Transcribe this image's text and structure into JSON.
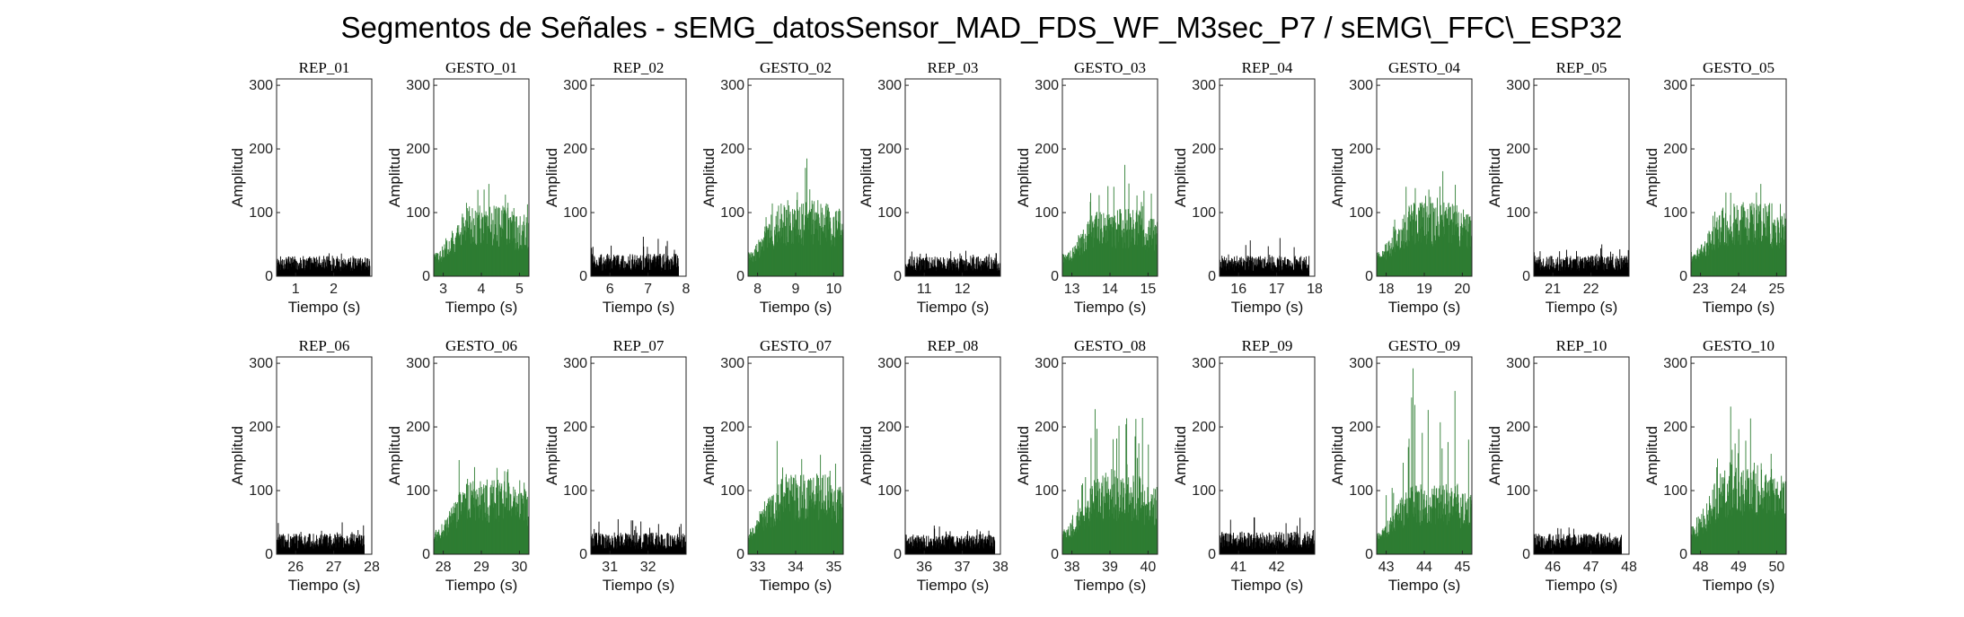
{
  "figure": {
    "title": "Segmentos de Señales - sEMG_datosSensor_MAD_FDS_WF_M3sec_P7 / sEMG\\_FFC\\_ESP32"
  },
  "colors": {
    "rep": "#000000",
    "gesto": "#2e7d32"
  },
  "chart_data": [
    {
      "type": "bar",
      "title": "REP_01",
      "kind": "rep",
      "xlabel": "Tiempo (s)",
      "ylabel": "Amplitud",
      "xlim": [
        0.5,
        3.0
      ],
      "ylim": [
        0,
        310
      ],
      "xticks": [
        1,
        2
      ],
      "yticks": [
        0,
        100,
        200,
        300
      ],
      "t_range": [
        0.5,
        2.95
      ],
      "baseline": 22,
      "max": 36
    },
    {
      "type": "bar",
      "title": "GESTO_01",
      "kind": "gesto",
      "xlabel": "Tiempo (s)",
      "ylabel": "Amplitud",
      "xlim": [
        2.75,
        5.25
      ],
      "ylim": [
        0,
        310
      ],
      "xticks": [
        3,
        4,
        5
      ],
      "yticks": [
        0,
        100,
        200,
        300
      ],
      "t_range": [
        2.75,
        5.25
      ],
      "baseline": 55,
      "max": 145
    },
    {
      "type": "bar",
      "title": "REP_02",
      "kind": "rep",
      "xlabel": "Tiempo (s)",
      "ylabel": "Amplitud",
      "xlim": [
        5.5,
        8.0
      ],
      "ylim": [
        0,
        310
      ],
      "xticks": [
        6,
        7,
        8
      ],
      "yticks": [
        0,
        100,
        200,
        300
      ],
      "t_range": [
        5.5,
        7.8
      ],
      "baseline": 25,
      "max": 62
    },
    {
      "type": "bar",
      "title": "GESTO_02",
      "kind": "gesto",
      "xlabel": "Tiempo (s)",
      "ylabel": "Amplitud",
      "xlim": [
        7.75,
        10.25
      ],
      "ylim": [
        0,
        310
      ],
      "xticks": [
        8,
        9,
        10
      ],
      "yticks": [
        0,
        100,
        200,
        300
      ],
      "t_range": [
        7.75,
        10.25
      ],
      "baseline": 60,
      "max": 185
    },
    {
      "type": "bar",
      "title": "REP_03",
      "kind": "rep",
      "xlabel": "Tiempo (s)",
      "ylabel": "Amplitud",
      "xlim": [
        10.5,
        13.0
      ],
      "ylim": [
        0,
        310
      ],
      "xticks": [
        11,
        12
      ],
      "yticks": [
        0,
        100,
        200,
        300
      ],
      "t_range": [
        10.5,
        13.0
      ],
      "baseline": 22,
      "max": 40
    },
    {
      "type": "bar",
      "title": "GESTO_03",
      "kind": "gesto",
      "xlabel": "Tiempo (s)",
      "ylabel": "Amplitud",
      "xlim": [
        12.75,
        15.25
      ],
      "ylim": [
        0,
        310
      ],
      "xticks": [
        13,
        14,
        15
      ],
      "yticks": [
        0,
        100,
        200,
        300
      ],
      "t_range": [
        12.75,
        15.25
      ],
      "baseline": 52,
      "max": 175
    },
    {
      "type": "bar",
      "title": "REP_04",
      "kind": "rep",
      "xlabel": "Tiempo (s)",
      "ylabel": "Amplitud",
      "xlim": [
        15.5,
        18.0
      ],
      "ylim": [
        0,
        310
      ],
      "xticks": [
        16,
        17,
        18
      ],
      "yticks": [
        0,
        100,
        200,
        300
      ],
      "t_range": [
        15.5,
        17.85
      ],
      "baseline": 22,
      "max": 60
    },
    {
      "type": "bar",
      "title": "GESTO_04",
      "kind": "gesto",
      "xlabel": "Tiempo (s)",
      "ylabel": "Amplitud",
      "xlim": [
        17.75,
        20.25
      ],
      "ylim": [
        0,
        310
      ],
      "xticks": [
        18,
        19,
        20
      ],
      "yticks": [
        0,
        100,
        200,
        300
      ],
      "t_range": [
        17.75,
        20.25
      ],
      "baseline": 58,
      "max": 165
    },
    {
      "type": "bar",
      "title": "REP_05",
      "kind": "rep",
      "xlabel": "Tiempo (s)",
      "ylabel": "Amplitud",
      "xlim": [
        20.5,
        23.0
      ],
      "ylim": [
        0,
        310
      ],
      "xticks": [
        21,
        22
      ],
      "yticks": [
        0,
        100,
        200,
        300
      ],
      "t_range": [
        20.5,
        23.0
      ],
      "baseline": 22,
      "max": 50
    },
    {
      "type": "bar",
      "title": "GESTO_05",
      "kind": "gesto",
      "xlabel": "Tiempo (s)",
      "ylabel": "Amplitud",
      "xlim": [
        22.75,
        25.25
      ],
      "ylim": [
        0,
        310
      ],
      "xticks": [
        23,
        24,
        25
      ],
      "yticks": [
        0,
        100,
        200,
        300
      ],
      "t_range": [
        22.75,
        25.25
      ],
      "baseline": 58,
      "max": 145
    },
    {
      "type": "bar",
      "title": "REP_06",
      "kind": "rep",
      "xlabel": "Tiempo (s)",
      "ylabel": "Amplitud",
      "xlim": [
        25.5,
        28.0
      ],
      "ylim": [
        0,
        310
      ],
      "xticks": [
        26,
        27,
        28
      ],
      "yticks": [
        0,
        100,
        200,
        300
      ],
      "t_range": [
        25.5,
        27.8
      ],
      "baseline": 22,
      "max": 50
    },
    {
      "type": "bar",
      "title": "GESTO_06",
      "kind": "gesto",
      "xlabel": "Tiempo (s)",
      "ylabel": "Amplitud",
      "xlim": [
        27.75,
        30.25
      ],
      "ylim": [
        0,
        310
      ],
      "xticks": [
        28,
        29,
        30
      ],
      "yticks": [
        0,
        100,
        200,
        300
      ],
      "t_range": [
        27.75,
        30.25
      ],
      "baseline": 60,
      "max": 148
    },
    {
      "type": "bar",
      "title": "REP_07",
      "kind": "rep",
      "xlabel": "Tiempo (s)",
      "ylabel": "Amplitud",
      "xlim": [
        30.5,
        33.0
      ],
      "ylim": [
        0,
        310
      ],
      "xticks": [
        31,
        32
      ],
      "yticks": [
        0,
        100,
        200,
        300
      ],
      "t_range": [
        30.5,
        33.0
      ],
      "baseline": 24,
      "max": 55
    },
    {
      "type": "bar",
      "title": "GESTO_07",
      "kind": "gesto",
      "xlabel": "Tiempo (s)",
      "ylabel": "Amplitud",
      "xlim": [
        32.75,
        35.25
      ],
      "ylim": [
        0,
        310
      ],
      "xticks": [
        33,
        34,
        35
      ],
      "yticks": [
        0,
        100,
        200,
        300
      ],
      "t_range": [
        32.75,
        35.25
      ],
      "baseline": 65,
      "max": 178
    },
    {
      "type": "bar",
      "title": "REP_08",
      "kind": "rep",
      "xlabel": "Tiempo (s)",
      "ylabel": "Amplitud",
      "xlim": [
        35.5,
        38.0
      ],
      "ylim": [
        0,
        310
      ],
      "xticks": [
        36,
        37,
        38
      ],
      "yticks": [
        0,
        100,
        200,
        300
      ],
      "t_range": [
        35.5,
        37.85
      ],
      "baseline": 22,
      "max": 45
    },
    {
      "type": "bar",
      "title": "GESTO_08",
      "kind": "gesto",
      "xlabel": "Tiempo (s)",
      "ylabel": "Amplitud",
      "xlim": [
        37.75,
        40.25
      ],
      "ylim": [
        0,
        310
      ],
      "xticks": [
        38,
        39,
        40
      ],
      "yticks": [
        0,
        100,
        200,
        300
      ],
      "t_range": [
        37.75,
        40.25
      ],
      "baseline": 62,
      "max": 228
    },
    {
      "type": "bar",
      "title": "REP_09",
      "kind": "rep",
      "xlabel": "Tiempo (s)",
      "ylabel": "Amplitud",
      "xlim": [
        40.5,
        43.0
      ],
      "ylim": [
        0,
        310
      ],
      "xticks": [
        41,
        42
      ],
      "yticks": [
        0,
        100,
        200,
        300
      ],
      "t_range": [
        40.5,
        43.0
      ],
      "baseline": 25,
      "max": 58
    },
    {
      "type": "bar",
      "title": "GESTO_09",
      "kind": "gesto",
      "xlabel": "Tiempo (s)",
      "ylabel": "Amplitud",
      "xlim": [
        42.75,
        45.25
      ],
      "ylim": [
        0,
        310
      ],
      "xticks": [
        43,
        44,
        45
      ],
      "yticks": [
        0,
        100,
        200,
        300
      ],
      "t_range": [
        42.75,
        45.25
      ],
      "baseline": 55,
      "max": 292
    },
    {
      "type": "bar",
      "title": "REP_10",
      "kind": "rep",
      "xlabel": "Tiempo (s)",
      "ylabel": "Amplitud",
      "xlim": [
        45.5,
        48.0
      ],
      "ylim": [
        0,
        310
      ],
      "xticks": [
        46,
        47,
        48
      ],
      "yticks": [
        0,
        100,
        200,
        300
      ],
      "t_range": [
        45.5,
        47.8
      ],
      "baseline": 22,
      "max": 42
    },
    {
      "type": "bar",
      "title": "GESTO_10",
      "kind": "gesto",
      "xlabel": "Tiempo (s)",
      "ylabel": "Amplitud",
      "xlim": [
        47.75,
        50.25
      ],
      "ylim": [
        0,
        310
      ],
      "xticks": [
        48,
        49,
        50
      ],
      "yticks": [
        0,
        100,
        200,
        300
      ],
      "t_range": [
        47.75,
        50.25
      ],
      "baseline": 75,
      "max": 232
    }
  ]
}
